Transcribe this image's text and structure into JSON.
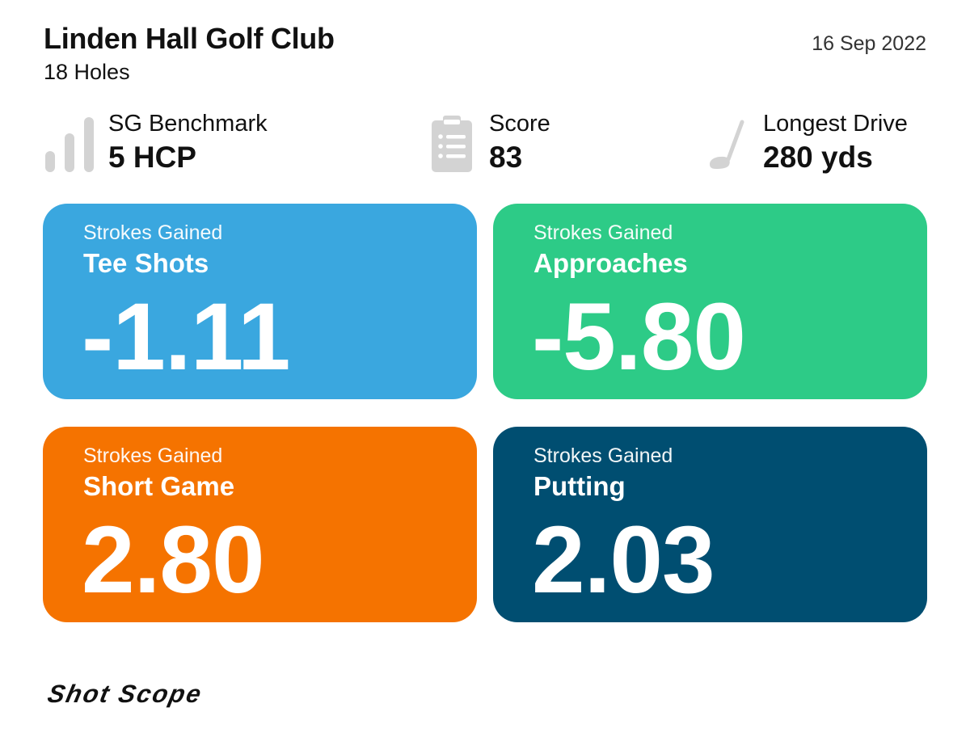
{
  "header": {
    "title": "Linden Hall Golf Club",
    "subtitle": "18 Holes",
    "date": "16 Sep 2022"
  },
  "stats": {
    "benchmark": {
      "label": "SG Benchmark",
      "value": "5 HCP",
      "icon": "bar-chart-icon"
    },
    "score": {
      "label": "Score",
      "value": "83",
      "icon": "clipboard-icon"
    },
    "drive": {
      "label": "Longest Drive",
      "value": "280 yds",
      "icon": "golf-club-icon"
    }
  },
  "cards": [
    {
      "label": "Strokes Gained",
      "title": "Tee Shots",
      "value": "-1.11",
      "color": "#3aa7df"
    },
    {
      "label": "Strokes Gained",
      "title": "Approaches",
      "value": "-5.80",
      "color": "#2dcb87"
    },
    {
      "label": "Strokes Gained",
      "title": "Short Game",
      "value": "2.80",
      "color": "#f57300"
    },
    {
      "label": "Strokes Gained",
      "title": "Putting",
      "value": "2.03",
      "color": "#004e71"
    }
  ],
  "colors": {
    "icon_gray": "#d3d3d3",
    "text": "#111111"
  },
  "logo": {
    "text": "Shot Scope"
  }
}
